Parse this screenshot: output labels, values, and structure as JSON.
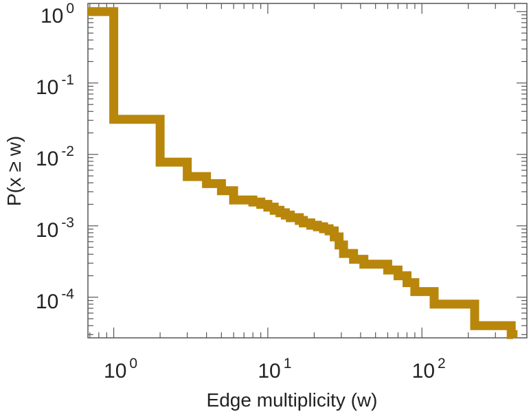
{
  "chart_data": {
    "type": "line",
    "step": true,
    "xlabel": "Edge multiplicity (w)",
    "ylabel": "P(x ≥ w)",
    "x_scale": "log",
    "y_scale": "log",
    "xlim": [
      0.68,
      480
    ],
    "ylim": [
      2.7e-05,
      1.3
    ],
    "x_ticks": [
      {
        "value": 1,
        "base": "10",
        "exp": "0"
      },
      {
        "value": 10,
        "base": "10",
        "exp": "1"
      },
      {
        "value": 100,
        "base": "10",
        "exp": "2"
      }
    ],
    "y_ticks": [
      {
        "value": 1,
        "base": "10",
        "exp": "0"
      },
      {
        "value": 0.1,
        "base": "10",
        "exp": "-1"
      },
      {
        "value": 0.01,
        "base": "10",
        "exp": "-2"
      },
      {
        "value": 0.001,
        "base": "10",
        "exp": "-3"
      },
      {
        "value": 0.0001,
        "base": "10",
        "exp": "-4"
      }
    ],
    "grid": false,
    "color": "#b8860b",
    "series": [
      {
        "x": [
          0.68,
          1,
          2,
          3,
          4,
          5,
          6,
          8,
          9,
          10,
          11,
          12,
          13,
          14,
          16,
          17,
          19,
          21,
          23,
          25,
          27,
          29,
          31,
          36,
          42,
          60,
          70,
          80,
          90,
          120,
          220,
          380,
          390
        ],
        "y": [
          1.0,
          0.031,
          0.0078,
          0.0049,
          0.0039,
          0.0031,
          0.0023,
          0.00215,
          0.002,
          0.00183,
          0.00165,
          0.00152,
          0.00141,
          0.0013,
          0.00119,
          0.0011,
          0.00102,
          0.00097,
          0.00091,
          0.00085,
          0.0007,
          0.00054,
          0.00041,
          0.00034,
          0.00029,
          0.00024,
          0.0002,
          0.00016,
          0.00012,
          8e-05,
          4e-05,
          3e-05,
          3e-05
        ]
      }
    ]
  }
}
